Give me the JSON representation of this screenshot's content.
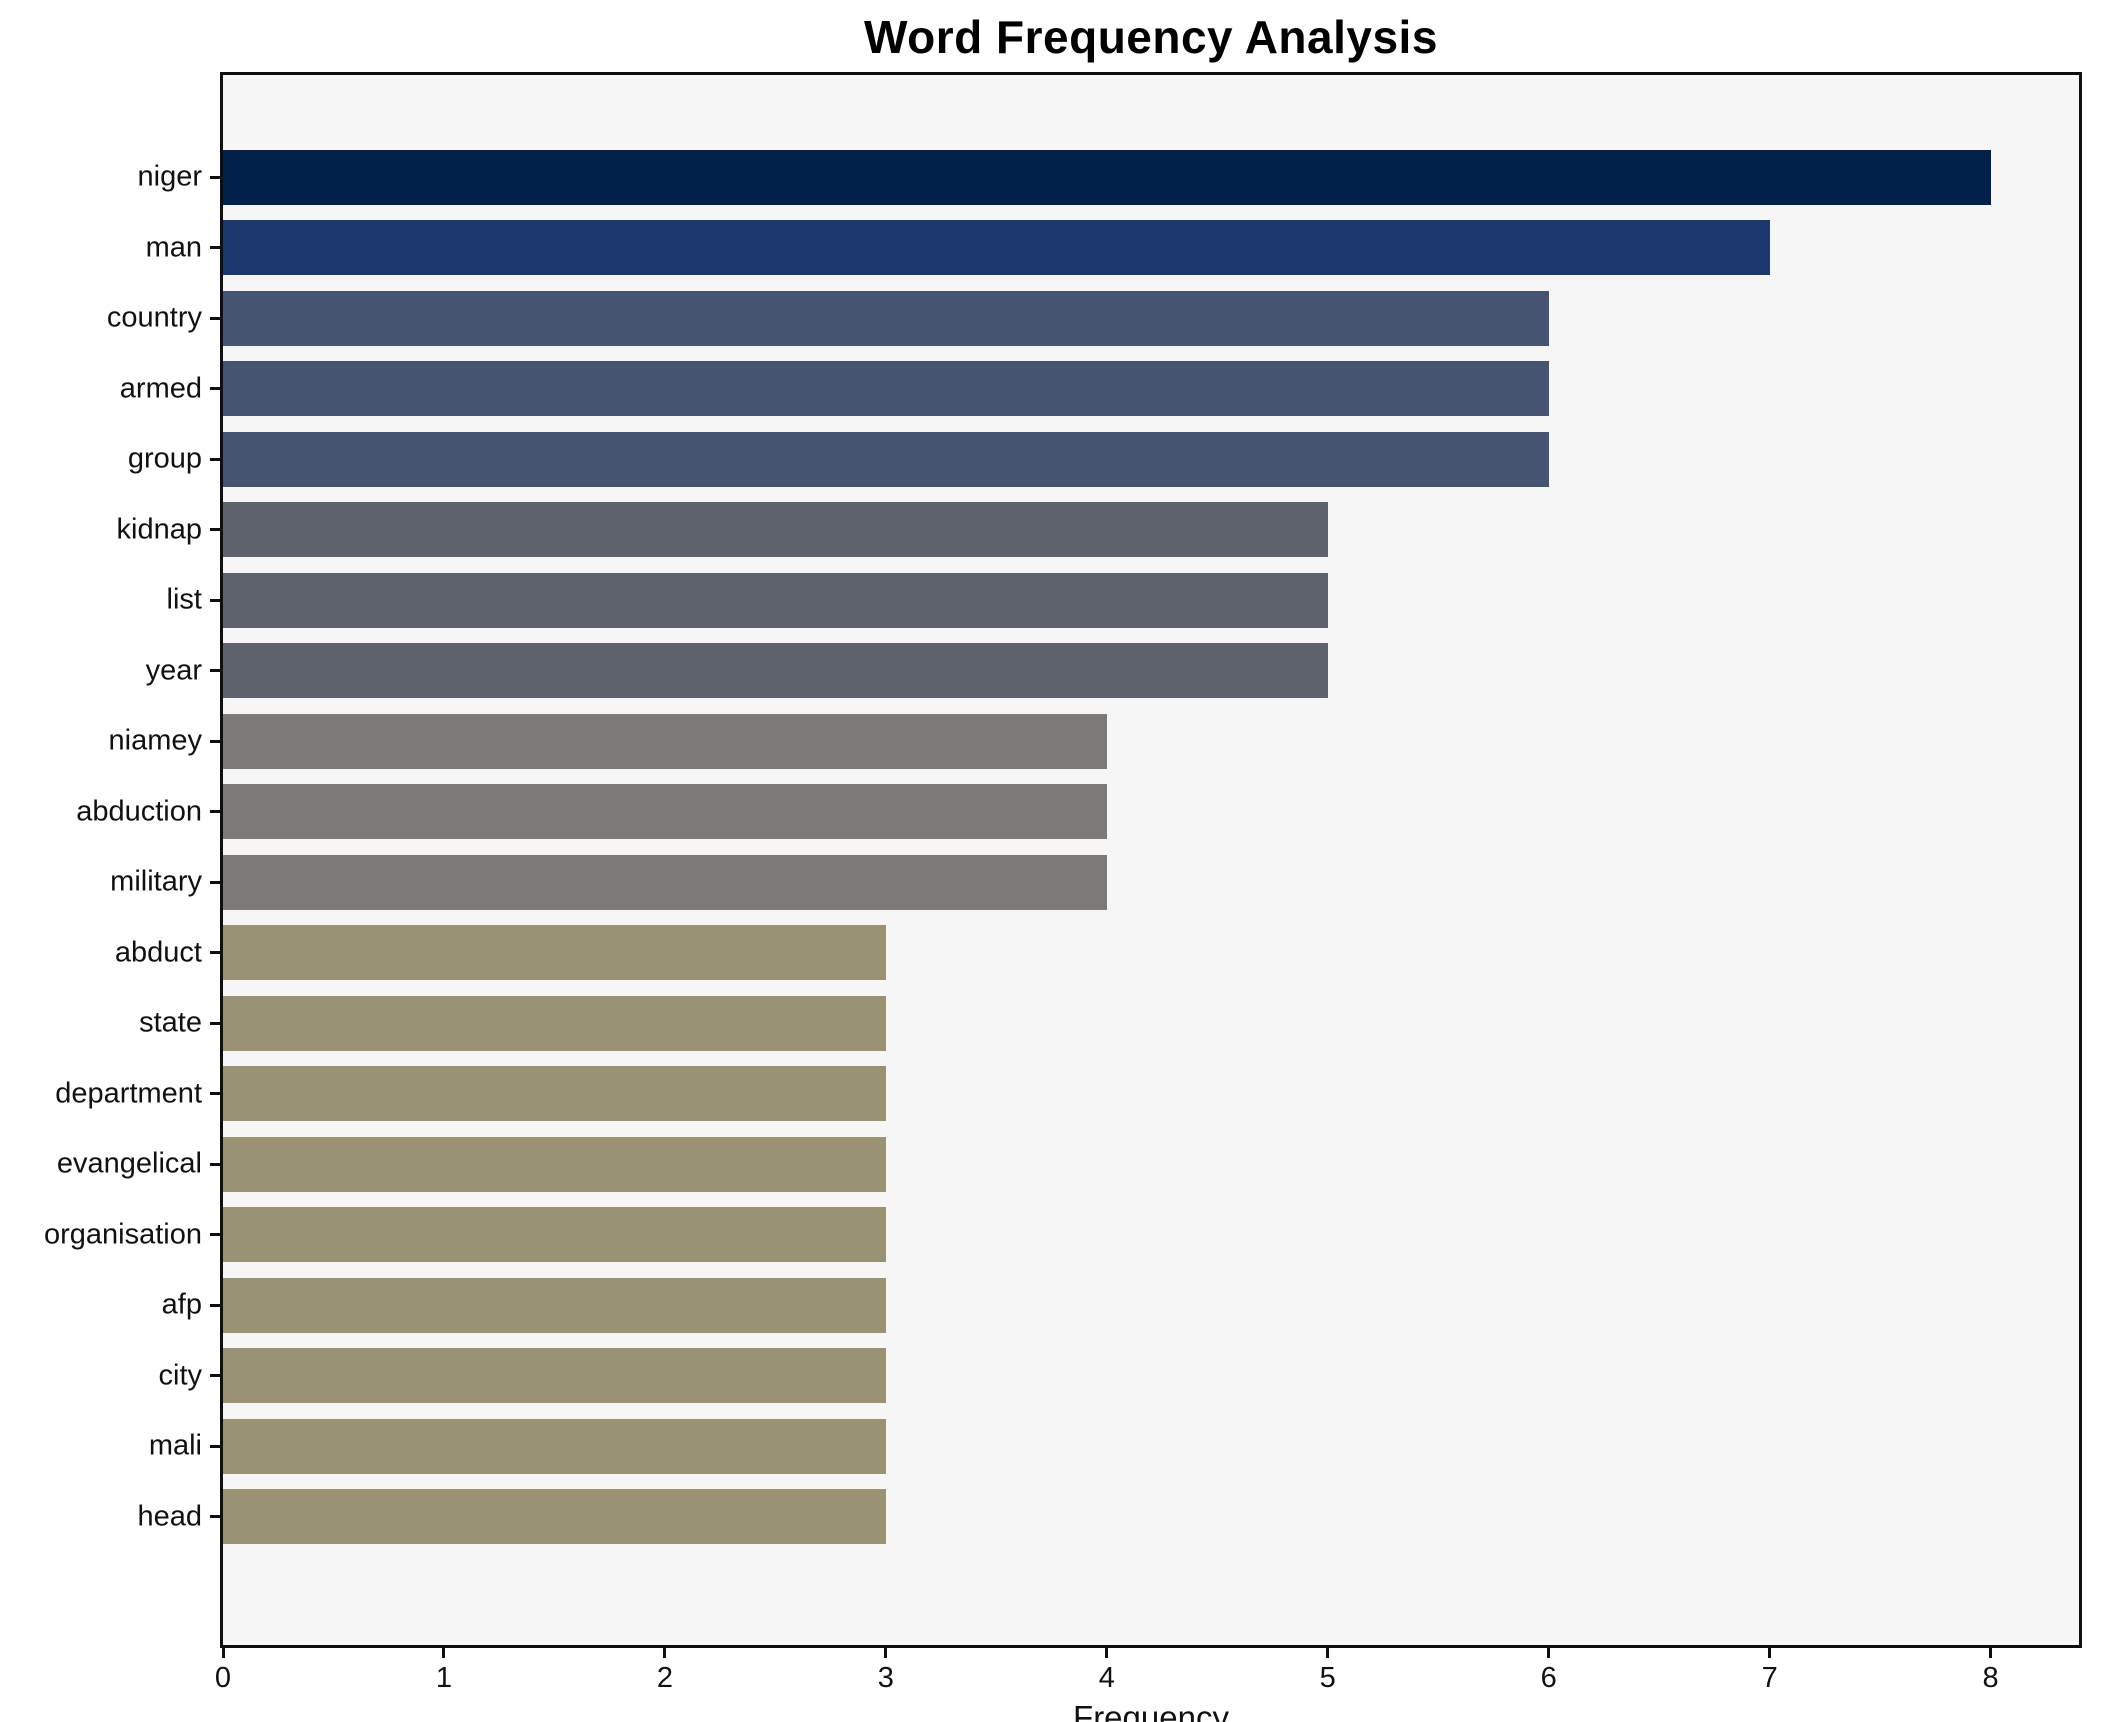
{
  "title": "Word Frequency Analysis",
  "chart_data": {
    "type": "bar",
    "orientation": "horizontal",
    "title": "Word Frequency Analysis",
    "xlabel": "Frequency",
    "ylabel": "",
    "xlim": [
      0,
      8.4
    ],
    "x_ticks": [
      0,
      1,
      2,
      3,
      4,
      5,
      6,
      7,
      8
    ],
    "grid": false,
    "legend": null,
    "categories": [
      "niger",
      "man",
      "country",
      "armed",
      "group",
      "kidnap",
      "list",
      "year",
      "niamey",
      "abduction",
      "military",
      "abduct",
      "state",
      "department",
      "evangelical",
      "organisation",
      "afp",
      "city",
      "mali",
      "head"
    ],
    "values": [
      8,
      7,
      6,
      6,
      6,
      5,
      5,
      5,
      4,
      4,
      4,
      3,
      3,
      3,
      3,
      3,
      3,
      3,
      3,
      3
    ],
    "bar_colors_by_value": {
      "8": "#01214a",
      "7": "#1c386c",
      "6": "#465471",
      "5": "#5e626d",
      "4": "#7b7a77",
      "3": "#999373"
    },
    "plot_bg": "#f6f6f7",
    "frame_color": "#0f0f0f"
  }
}
